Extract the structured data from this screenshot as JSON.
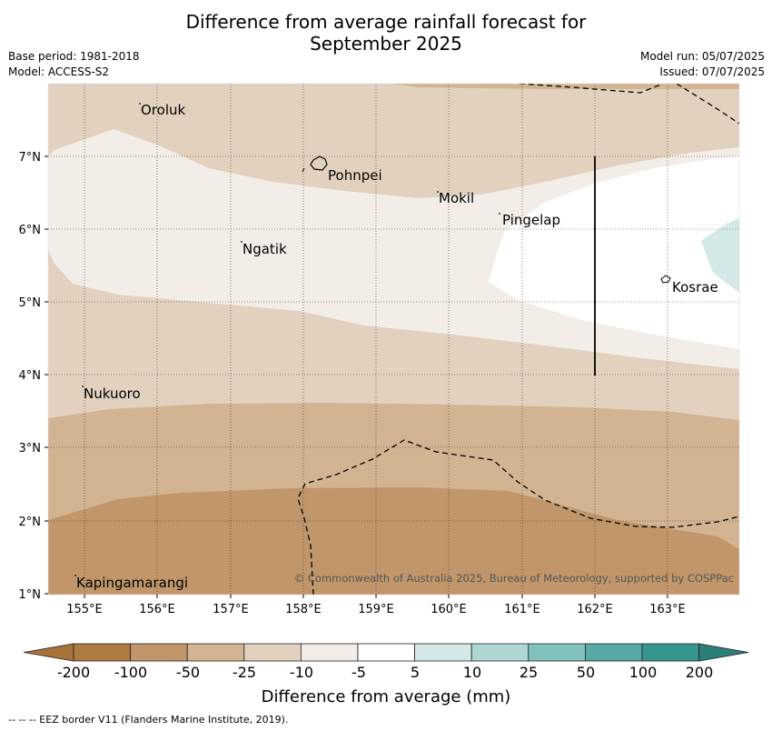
{
  "title": {
    "line1": "Difference from average rainfall forecast for",
    "line2": "September 2025"
  },
  "meta": {
    "base_period": "Base period: 1981-2018",
    "model": "Model: ACCESS-S2",
    "model_run": "Model run: 05/07/2025",
    "issued": "Issued: 07/07/2025"
  },
  "map": {
    "lon_ticks": [
      "155°E",
      "156°E",
      "157°E",
      "158°E",
      "159°E",
      "160°E",
      "161°E",
      "162°E",
      "163°E"
    ],
    "lat_ticks": [
      "7°N",
      "6°N",
      "5°N",
      "4°N",
      "3°N",
      "2°N",
      "1°N"
    ],
    "places": [
      {
        "name": "Oroluk"
      },
      {
        "name": "Pohnpei"
      },
      {
        "name": "Mokil"
      },
      {
        "name": "Pingelap"
      },
      {
        "name": "Ngatik"
      },
      {
        "name": "Kosrae"
      },
      {
        "name": "Nukuoro"
      },
      {
        "name": "Kapingamarangi"
      }
    ],
    "copyright": "© Commonwealth of Australia 2025, Bureau of Meteorology, supported by COSPPac"
  },
  "legend": {
    "ticks": [
      "-200",
      "-100",
      "-50",
      "-25",
      "-10",
      "-5",
      "5",
      "10",
      "25",
      "50",
      "100",
      "200"
    ],
    "colors": [
      "#a87339",
      "#ae7a40",
      "#c0966a",
      "#d2b392",
      "#e3d1c0",
      "#f3ede7",
      "#ffffff",
      "#d4e8e7",
      "#add7d5",
      "#82c2bd",
      "#56a9a5",
      "#35958f",
      "#2a7f7a"
    ],
    "label": "Difference from average (mm)"
  },
  "footnote": "--  --  -- EEZ border V11 (Flanders Marine Institute, 2019)."
}
